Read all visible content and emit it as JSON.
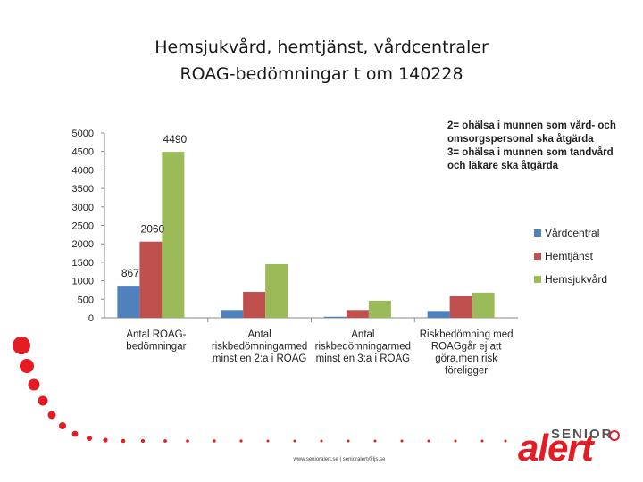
{
  "slide": {
    "title_line1": "Hemsjukvård, hemtjänst, vårdcentraler",
    "title_line2": "ROAG-bedömningar t om 140228",
    "footer": "www.senioralert.se | senioralert@ljs.se",
    "logo_top": "SENIOR",
    "logo_bottom": "alert"
  },
  "colors": {
    "accent_red": "#e41d24",
    "dots": "#e41d24"
  },
  "chart_data": {
    "type": "bar",
    "categories": [
      [
        "Antal ROAG-",
        "bedömningar"
      ],
      [
        "Antal",
        "riskbedömningarmed",
        "minst en 2:a i ROAG"
      ],
      [
        "Antal",
        "riskbedömningarmed",
        "minst en 3:a i ROAG"
      ],
      [
        "Riskbedömning med",
        "ROAGgår ej att",
        "göra,men risk",
        "föreligger"
      ]
    ],
    "series": [
      {
        "name": "Vårdcentral",
        "color": "#4f81bd",
        "values": [
          867,
          210,
          30,
          185
        ]
      },
      {
        "name": "Hemtjänst",
        "color": "#c0504d",
        "values": [
          2060,
          700,
          210,
          580
        ]
      },
      {
        "name": "Hemsjukvård",
        "color": "#9bbb59",
        "values": [
          4490,
          1450,
          460,
          680
        ]
      }
    ],
    "data_labels": [
      {
        "series": 0,
        "category": 0,
        "text": "867"
      },
      {
        "series": 1,
        "category": 0,
        "text": "2060"
      },
      {
        "series": 2,
        "category": 0,
        "text": "4490"
      }
    ],
    "ylim": [
      0,
      5000
    ],
    "yticks": [
      0,
      500,
      1000,
      1500,
      2000,
      2500,
      3000,
      3500,
      4000,
      4500,
      5000
    ],
    "legend_position": "right",
    "annotation": [
      "2= ohälsa i munnen som vård- och",
      "omsorgspersonal  ska åtgärda",
      "3= ohälsa i munnen som tandvård",
      "och läkare ska åtgärda"
    ],
    "grid": false
  }
}
